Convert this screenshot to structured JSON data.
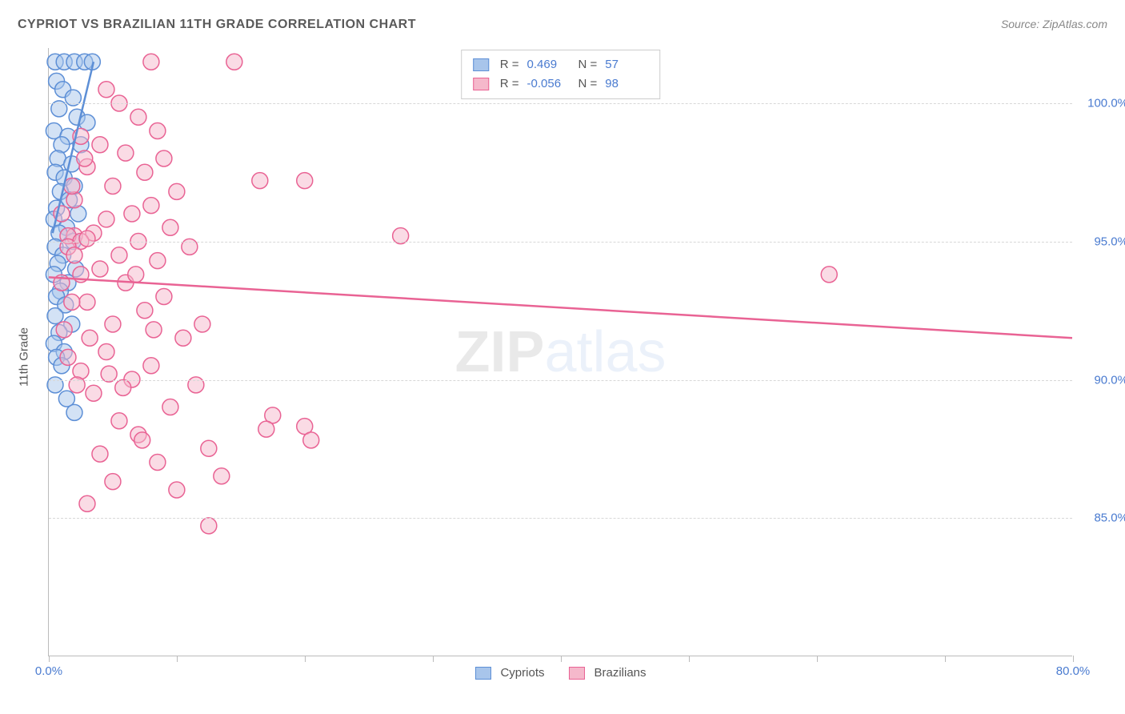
{
  "title": "CYPRIOT VS BRAZILIAN 11TH GRADE CORRELATION CHART",
  "source": "Source: ZipAtlas.com",
  "watermark": {
    "part1": "ZIP",
    "part2": "atlas"
  },
  "ylabel": "11th Grade",
  "chart": {
    "type": "scatter",
    "xlim": [
      0,
      80
    ],
    "ylim": [
      80,
      102
    ],
    "xtick_positions": [
      0,
      10,
      20,
      30,
      40,
      50,
      60,
      70,
      80
    ],
    "xtick_labels": {
      "0": "0.0%",
      "80": "80.0%"
    },
    "ytick_positions": [
      85,
      90,
      95,
      100
    ],
    "ytick_labels": [
      "85.0%",
      "90.0%",
      "95.0%",
      "100.0%"
    ],
    "grid_color": "#d8d8d8",
    "axis_color": "#bbbbbb",
    "background_color": "#ffffff",
    "marker_radius": 10,
    "marker_stroke_width": 1.5,
    "line_width": 2.5
  },
  "series": [
    {
      "key": "cypriots",
      "label": "Cypriots",
      "fill": "#a8c5eb",
      "stroke": "#5d8fd6",
      "fill_opacity": 0.5,
      "R": "0.469",
      "N": "57",
      "trend": {
        "x1": 0.3,
        "y1": 95.3,
        "x2": 3.5,
        "y2": 101.5
      },
      "points": [
        [
          0.5,
          101.5
        ],
        [
          1.2,
          101.5
        ],
        [
          2.0,
          101.5
        ],
        [
          2.8,
          101.5
        ],
        [
          3.4,
          101.5
        ],
        [
          0.6,
          100.8
        ],
        [
          1.1,
          100.5
        ],
        [
          1.9,
          100.2
        ],
        [
          0.8,
          99.8
        ],
        [
          2.2,
          99.5
        ],
        [
          3.0,
          99.3
        ],
        [
          0.4,
          99.0
        ],
        [
          1.5,
          98.8
        ],
        [
          1.0,
          98.5
        ],
        [
          2.5,
          98.5
        ],
        [
          0.7,
          98.0
        ],
        [
          1.8,
          97.8
        ],
        [
          0.5,
          97.5
        ],
        [
          1.2,
          97.3
        ],
        [
          2.0,
          97.0
        ],
        [
          0.9,
          96.8
        ],
        [
          1.6,
          96.5
        ],
        [
          0.6,
          96.2
        ],
        [
          2.3,
          96.0
        ],
        [
          0.4,
          95.8
        ],
        [
          1.4,
          95.5
        ],
        [
          0.8,
          95.3
        ],
        [
          1.9,
          95.0
        ],
        [
          0.5,
          94.8
        ],
        [
          1.1,
          94.5
        ],
        [
          0.7,
          94.2
        ],
        [
          2.1,
          94.0
        ],
        [
          0.4,
          93.8
        ],
        [
          1.5,
          93.5
        ],
        [
          0.9,
          93.2
        ],
        [
          0.6,
          93.0
        ],
        [
          1.3,
          92.7
        ],
        [
          0.5,
          92.3
        ],
        [
          1.8,
          92.0
        ],
        [
          0.8,
          91.7
        ],
        [
          0.4,
          91.3
        ],
        [
          1.2,
          91.0
        ],
        [
          0.6,
          90.8
        ],
        [
          1.0,
          90.5
        ],
        [
          0.5,
          89.8
        ],
        [
          1.4,
          89.3
        ],
        [
          2.0,
          88.8
        ]
      ]
    },
    {
      "key": "brazilians",
      "label": "Brazilians",
      "fill": "#f5b8cb",
      "stroke": "#e96394",
      "fill_opacity": 0.5,
      "R": "-0.056",
      "N": "98",
      "trend": {
        "x1": 0,
        "y1": 93.7,
        "x2": 80,
        "y2": 91.5
      },
      "points": [
        [
          8.0,
          101.5
        ],
        [
          14.5,
          101.5
        ],
        [
          4.5,
          100.5
        ],
        [
          5.5,
          100.0
        ],
        [
          7.0,
          99.5
        ],
        [
          8.5,
          99.0
        ],
        [
          2.5,
          98.8
        ],
        [
          4.0,
          98.5
        ],
        [
          6.0,
          98.2
        ],
        [
          9.0,
          98.0
        ],
        [
          3.0,
          97.7
        ],
        [
          7.5,
          97.5
        ],
        [
          16.5,
          97.2
        ],
        [
          20.0,
          97.2
        ],
        [
          5.0,
          97.0
        ],
        [
          10.0,
          96.8
        ],
        [
          2.0,
          96.5
        ],
        [
          8.0,
          96.3
        ],
        [
          6.5,
          96.0
        ],
        [
          4.5,
          95.8
        ],
        [
          9.5,
          95.5
        ],
        [
          3.5,
          95.3
        ],
        [
          7.0,
          95.0
        ],
        [
          2.0,
          95.2
        ],
        [
          1.5,
          95.2
        ],
        [
          2.5,
          95.0
        ],
        [
          3.0,
          95.1
        ],
        [
          11.0,
          94.8
        ],
        [
          27.5,
          95.2
        ],
        [
          5.5,
          94.5
        ],
        [
          8.5,
          94.3
        ],
        [
          4.0,
          94.0
        ],
        [
          2.5,
          93.8
        ],
        [
          6.0,
          93.5
        ],
        [
          9.0,
          93.0
        ],
        [
          3.0,
          92.8
        ],
        [
          7.5,
          92.5
        ],
        [
          12.0,
          92.0
        ],
        [
          61.0,
          93.8
        ],
        [
          5.0,
          92.0
        ],
        [
          10.5,
          91.5
        ],
        [
          4.5,
          91.0
        ],
        [
          8.0,
          90.5
        ],
        [
          2.5,
          90.3
        ],
        [
          6.5,
          90.0
        ],
        [
          11.5,
          89.8
        ],
        [
          3.5,
          89.5
        ],
        [
          9.5,
          89.0
        ],
        [
          5.5,
          88.5
        ],
        [
          17.5,
          88.7
        ],
        [
          17.0,
          88.2
        ],
        [
          7.0,
          88.0
        ],
        [
          12.5,
          87.5
        ],
        [
          4.0,
          87.3
        ],
        [
          20.0,
          88.3
        ],
        [
          20.5,
          87.8
        ],
        [
          8.5,
          87.0
        ],
        [
          13.5,
          86.5
        ],
        [
          5.0,
          86.3
        ],
        [
          10.0,
          86.0
        ],
        [
          3.0,
          85.5
        ],
        [
          12.5,
          84.7
        ],
        [
          1.5,
          94.8
        ],
        [
          2.0,
          94.5
        ],
        [
          1.0,
          93.5
        ],
        [
          1.8,
          92.8
        ],
        [
          1.2,
          91.8
        ],
        [
          1.5,
          90.8
        ],
        [
          2.2,
          89.8
        ],
        [
          1.0,
          96.0
        ],
        [
          1.8,
          97.0
        ],
        [
          2.8,
          98.0
        ],
        [
          6.8,
          93.8
        ],
        [
          8.2,
          91.8
        ],
        [
          4.7,
          90.2
        ],
        [
          3.2,
          91.5
        ],
        [
          5.8,
          89.7
        ],
        [
          7.3,
          87.8
        ]
      ]
    }
  ],
  "legend": {
    "items": [
      {
        "label": "Cypriots",
        "fill": "#a8c5eb",
        "stroke": "#5d8fd6"
      },
      {
        "label": "Brazilians",
        "fill": "#f5b8cb",
        "stroke": "#e96394"
      }
    ]
  },
  "stats_labels": {
    "R": "R =",
    "N": "N ="
  }
}
